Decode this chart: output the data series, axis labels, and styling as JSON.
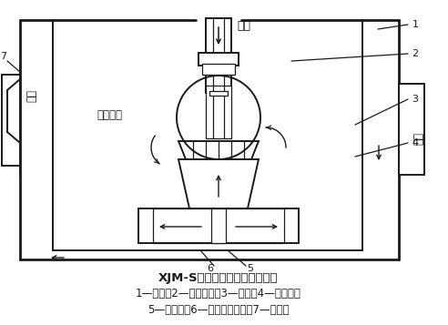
{
  "title": "XJM-S型系列浮选机结构示意图",
  "caption_line2": "1—槽体；2—搅拌机构；3—假底；4—稳流板；",
  "caption_line3": "5—吸料管；6—定子导向叶片；7—中矿箱",
  "label_kongqi": "空气",
  "label_xunhuan": "循环矿浆",
  "label_inflow": "入料",
  "label_zhongkuang": "中矿",
  "bg_color": "#ffffff",
  "line_color": "#1a1a1a",
  "fig_width": 4.92,
  "fig_height": 3.57,
  "dpi": 100
}
